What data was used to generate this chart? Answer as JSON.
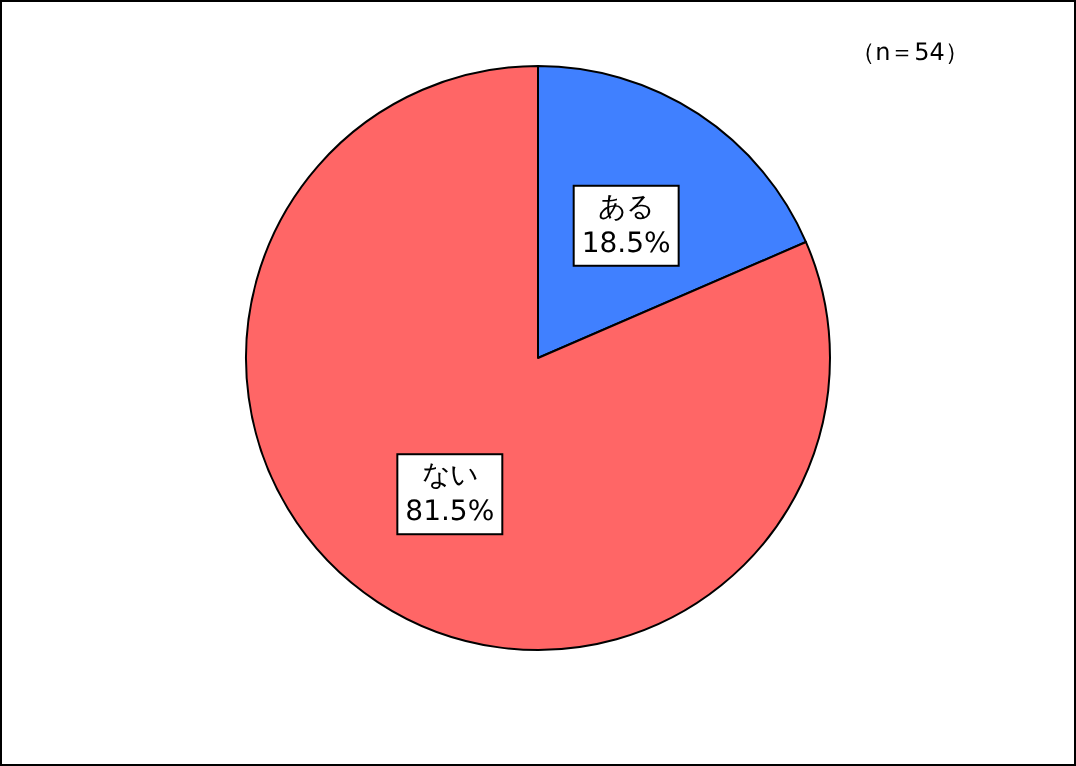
{
  "chart_data": {
    "type": "pie",
    "categories": [
      "ある",
      "ない"
    ],
    "values": [
      18.5,
      81.5
    ],
    "value_labels": [
      "18.5%",
      "81.5%"
    ],
    "colors": [
      "#4080ff",
      "#ff6666"
    ],
    "annotations": [
      "（n＝54）"
    ]
  }
}
